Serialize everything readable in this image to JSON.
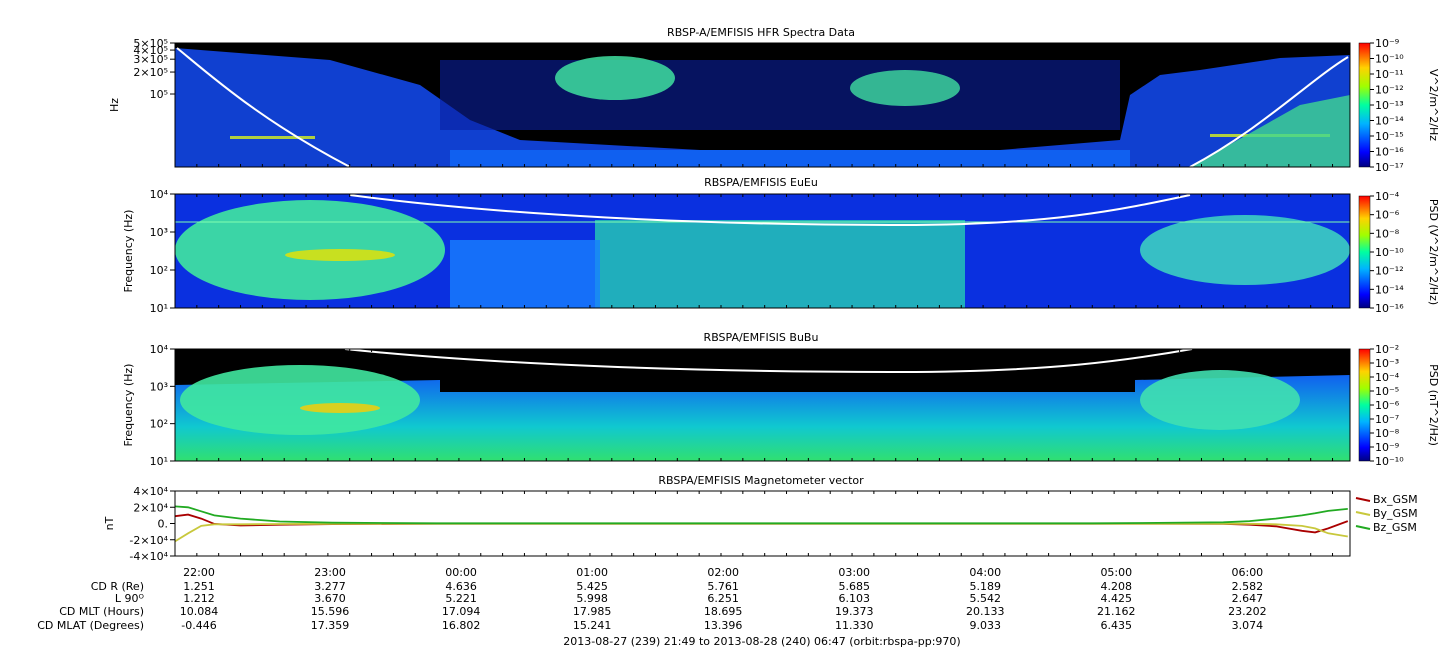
{
  "chart_data": [
    {
      "type": "heatmap",
      "title": "RBSP-A/EMFISIS  HFR Spectra Data",
      "ylabel": "Hz",
      "yscale": "log",
      "ylim": [
        10000,
        500000
      ],
      "ytick_labels": [
        "5×10⁵",
        "4×10⁵",
        "3×10⁵",
        "2×10⁵",
        "10⁵"
      ],
      "ytick_values": [
        500000,
        400000,
        300000,
        200000,
        100000
      ],
      "colorbar_label": "V^2/m^2/Hz",
      "colorbar_range": [
        1e-17,
        1e-09
      ],
      "colorbar_ticks": [
        "10⁻⁹",
        "10⁻¹⁰",
        "10⁻¹¹",
        "10⁻¹²",
        "10⁻¹³",
        "10⁻¹⁴",
        "10⁻¹⁵",
        "10⁻¹⁶",
        "10⁻¹⁷"
      ],
      "background": "#000000"
    },
    {
      "type": "heatmap",
      "title": "RBSPA/EMFISIS  EuEu",
      "ylabel": "Frequency (Hz)",
      "yscale": "log",
      "ylim": [
        10,
        10000
      ],
      "ytick_labels": [
        "10⁴",
        "10³",
        "10²",
        "10¹"
      ],
      "ytick_values": [
        10000,
        1000,
        100,
        10
      ],
      "colorbar_label": "PSD (V^2/m^2/Hz)",
      "colorbar_range": [
        1e-16,
        0.0001
      ],
      "colorbar_ticks": [
        "10⁻⁴",
        "10⁻⁶",
        "10⁻⁸",
        "10⁻¹⁰",
        "10⁻¹²",
        "10⁻¹⁴",
        "10⁻¹⁶"
      ]
    },
    {
      "type": "heatmap",
      "title": "RBSPA/EMFISIS  BuBu",
      "ylabel": "Frequency (Hz)",
      "yscale": "log",
      "ylim": [
        10,
        10000
      ],
      "ytick_labels": [
        "10⁴",
        "10³",
        "10²",
        "10¹"
      ],
      "ytick_values": [
        10000,
        1000,
        100,
        10
      ],
      "colorbar_label": "PSD (nT^2/Hz)",
      "colorbar_range": [
        1e-10,
        0.01
      ],
      "colorbar_ticks": [
        "10⁻²",
        "10⁻³",
        "10⁻⁴",
        "10⁻⁵",
        "10⁻⁶",
        "10⁻⁷",
        "10⁻⁸",
        "10⁻⁹",
        "10⁻¹⁰"
      ]
    },
    {
      "type": "line",
      "title": "RBSPA/EMFISIS  Magnetometer vector",
      "ylabel": "nT",
      "ylim": [
        -40000,
        40000
      ],
      "ytick_labels": [
        "4×10⁴",
        "2×10⁴",
        "0.",
        "-2×10⁴",
        "-4×10⁴"
      ],
      "ytick_values": [
        40000,
        20000,
        0,
        -20000,
        -40000
      ],
      "x_hours": [
        0,
        0.1,
        0.2,
        0.3,
        0.5,
        0.8,
        1.2,
        2,
        3,
        4,
        5,
        6,
        7,
        7.5,
        8,
        8.2,
        8.4,
        8.6,
        8.7,
        8.8,
        8.95
      ],
      "series": [
        {
          "name": "Bx_GSM",
          "color": "#aa0000",
          "values": [
            9000,
            11000,
            6000,
            -500,
            -2500,
            -1500,
            -800,
            -300,
            -200,
            -200,
            -200,
            -200,
            -200,
            -200,
            -500,
            -1500,
            -3500,
            -9000,
            -11000,
            -6000,
            3000
          ]
        },
        {
          "name": "By_GSM",
          "color": "#c8c83c",
          "values": [
            -22000,
            -12000,
            -3000,
            -1000,
            -1000,
            -600,
            -400,
            -200,
            -200,
            -200,
            -200,
            -200,
            -200,
            -200,
            -200,
            -400,
            -1000,
            -3000,
            -6000,
            -12000,
            -16000
          ]
        },
        {
          "name": "Bz_GSM",
          "color": "#22aa22",
          "values": [
            21000,
            20000,
            15000,
            10000,
            6000,
            2500,
            1000,
            300,
            200,
            200,
            200,
            200,
            300,
            700,
            1500,
            3000,
            6000,
            10000,
            12500,
            15500,
            18000
          ]
        }
      ],
      "legend_position": "right"
    }
  ],
  "x_axis": {
    "range": [
      "2013-08-27 21:49",
      "2013-08-28 06:47"
    ],
    "tick_labels": [
      "22:00",
      "23:00",
      "00:00",
      "01:00",
      "02:00",
      "03:00",
      "04:00",
      "05:00",
      "06:00"
    ],
    "tick_offsets_hours": [
      0.1833,
      1.1833,
      2.1833,
      3.1833,
      4.1833,
      5.1833,
      6.1833,
      7.1833,
      8.1833
    ]
  },
  "ephemeris": {
    "row_labels": [
      "CD R (Re)",
      "L 90ᴼ",
      "CD MLT (Hours)",
      "CD MLAT (Degrees)"
    ],
    "rows": [
      [
        "1.251",
        "3.277",
        "4.636",
        "5.425",
        "5.761",
        "5.685",
        "5.189",
        "4.208",
        "2.582"
      ],
      [
        "1.212",
        "3.670",
        "5.221",
        "5.998",
        "6.251",
        "6.103",
        "5.542",
        "4.425",
        "2.647"
      ],
      [
        "10.084",
        "15.596",
        "17.094",
        "17.985",
        "18.695",
        "19.373",
        "20.133",
        "21.162",
        "23.202"
      ],
      [
        "-0.446",
        "17.359",
        "16.802",
        "15.241",
        "13.396",
        "11.330",
        "9.033",
        "6.435",
        "3.074"
      ]
    ]
  },
  "footer": "2013-08-27 (239) 21:49 to 2013-08-28 (240) 06:47 (orbit:rbspa-pp:970)"
}
